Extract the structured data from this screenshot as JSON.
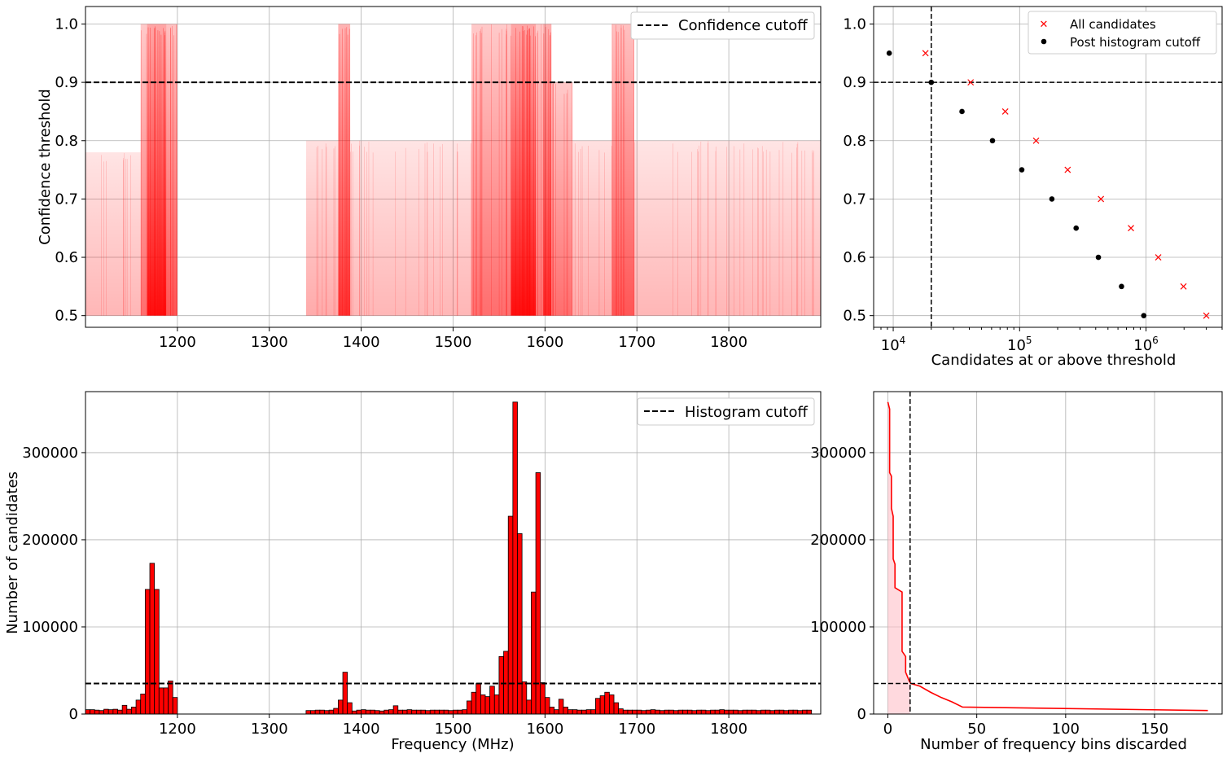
{
  "chart_data": [
    {
      "id": "scatter_freq_conf",
      "type": "scatter",
      "xlabel": "",
      "ylabel": "Confidence threshold",
      "xlim": [
        1100,
        1900
      ],
      "ylim": [
        0.48,
        1.03
      ],
      "xticks": [
        1200,
        1300,
        1400,
        1500,
        1600,
        1700,
        1800
      ],
      "yticks": [
        0.5,
        0.6,
        0.7,
        0.8,
        0.9,
        1.0
      ],
      "ytick_labels": [
        "0.5",
        "0.6",
        "0.7",
        "0.8",
        "0.9",
        "1.0"
      ],
      "grid": true,
      "legend_position": "top-right",
      "point_color": "#ff0000",
      "confidence_cutoff": 0.9,
      "legend": [
        {
          "label": "Confidence cutoff",
          "style": "dashed",
          "color": "#000000"
        }
      ],
      "bands": [
        {
          "from": 1100,
          "to": 1160,
          "density": 0.3,
          "ymax": 0.78
        },
        {
          "from": 1160,
          "to": 1167,
          "density": 0.6,
          "ymax": 1.0
        },
        {
          "from": 1167,
          "to": 1188,
          "density": 1.0,
          "ymax": 1.0
        },
        {
          "from": 1188,
          "to": 1200,
          "density": 0.7,
          "ymax": 1.0
        },
        {
          "from": 1340,
          "to": 1375,
          "density": 0.35,
          "ymax": 0.8
        },
        {
          "from": 1375,
          "to": 1388,
          "density": 0.85,
          "ymax": 1.0
        },
        {
          "from": 1388,
          "to": 1520,
          "density": 0.3,
          "ymax": 0.8
        },
        {
          "from": 1520,
          "to": 1563,
          "density": 0.6,
          "ymax": 1.0
        },
        {
          "from": 1563,
          "to": 1590,
          "density": 1.0,
          "ymax": 1.0
        },
        {
          "from": 1590,
          "to": 1598,
          "density": 0.6,
          "ymax": 1.0
        },
        {
          "from": 1598,
          "to": 1607,
          "density": 0.9,
          "ymax": 1.0
        },
        {
          "from": 1607,
          "to": 1630,
          "density": 0.6,
          "ymax": 0.9
        },
        {
          "from": 1630,
          "to": 1673,
          "density": 0.35,
          "ymax": 0.8
        },
        {
          "from": 1673,
          "to": 1697,
          "density": 0.7,
          "ymax": 1.0
        },
        {
          "from": 1697,
          "to": 1900,
          "density": 0.3,
          "ymax": 0.8
        }
      ]
    },
    {
      "id": "threshold_vs_candidates",
      "type": "scatter",
      "xlabel": "Candidates at or above threshold",
      "ylabel": "",
      "xscale": "log",
      "xlim": [
        7000,
        4000000
      ],
      "ylim": [
        0.48,
        1.03
      ],
      "xtick_values": [
        10000,
        100000,
        1000000
      ],
      "xtick_labels": [
        {
          "base": "10",
          "exp": "4"
        },
        {
          "base": "10",
          "exp": "5"
        },
        {
          "base": "10",
          "exp": "6"
        }
      ],
      "yticks": [
        0.5,
        0.6,
        0.7,
        0.8,
        0.9,
        1.0
      ],
      "ytick_labels": [
        "0.5",
        "0.6",
        "0.7",
        "0.8",
        "0.9",
        "1.0"
      ],
      "grid": true,
      "legend_position": "top-right",
      "hline": 0.9,
      "vline": 20000,
      "series": [
        {
          "name": "All candidates",
          "marker": "x",
          "color": "#ff0000",
          "points": [
            [
              18000,
              0.95
            ],
            [
              41000,
              0.9
            ],
            [
              77000,
              0.85
            ],
            [
              135000,
              0.8
            ],
            [
              240000,
              0.75
            ],
            [
              440000,
              0.7
            ],
            [
              760000,
              0.65
            ],
            [
              1250000,
              0.6
            ],
            [
              1980000,
              0.55
            ],
            [
              3000000,
              0.5
            ]
          ]
        },
        {
          "name": "Post histogram cutoff",
          "marker": "dot",
          "color": "#000000",
          "points": [
            [
              9300,
              0.95
            ],
            [
              20000,
              0.9
            ],
            [
              35000,
              0.85
            ],
            [
              61000,
              0.8
            ],
            [
              104000,
              0.75
            ],
            [
              180000,
              0.7
            ],
            [
              280000,
              0.65
            ],
            [
              420000,
              0.6
            ],
            [
              640000,
              0.55
            ],
            [
              960000,
              0.5
            ]
          ]
        }
      ]
    },
    {
      "id": "frequency_histogram",
      "type": "bar",
      "xlabel": "Frequency (MHz)",
      "ylabel": "Number of candidates",
      "xlim": [
        1100,
        1900
      ],
      "ylim": [
        0,
        370000
      ],
      "xticks": [
        1200,
        1300,
        1400,
        1500,
        1600,
        1700,
        1800
      ],
      "yticks": [
        0,
        100000,
        200000,
        300000
      ],
      "ytick_labels": [
        "0",
        "100000",
        "200000",
        "300000"
      ],
      "bin_start": 1100,
      "bin_width": 5,
      "bar_color": "#ff0000",
      "histogram_cutoff": 35000,
      "grid": true,
      "legend_position": "top-right",
      "legend": [
        {
          "label": "Histogram cutoff",
          "style": "dashed",
          "color": "#000000"
        }
      ],
      "values": [
        5000,
        5000,
        4500,
        4000,
        5500,
        5000,
        5500,
        4500,
        10000,
        5500,
        8000,
        16000,
        23000,
        143000,
        173000,
        143000,
        30000,
        30000,
        38000,
        19000,
        0,
        0,
        0,
        0,
        0,
        0,
        0,
        0,
        0,
        0,
        0,
        0,
        0,
        0,
        0,
        0,
        0,
        0,
        0,
        0,
        0,
        0,
        0,
        0,
        0,
        0,
        0,
        0,
        4000,
        4000,
        4500,
        4500,
        4000,
        4500,
        6500,
        16000,
        48000,
        13000,
        3500,
        4500,
        5000,
        4500,
        4500,
        4000,
        3500,
        4500,
        5000,
        9500,
        4500,
        4500,
        5000,
        4500,
        4500,
        4500,
        4000,
        4500,
        4500,
        4500,
        4500,
        4000,
        4500,
        4500,
        5000,
        15000,
        25000,
        35000,
        22000,
        20000,
        32000,
        22000,
        66000,
        72000,
        227000,
        358000,
        207000,
        37000,
        16000,
        140000,
        277000,
        36000,
        19000,
        8000,
        5000,
        17000,
        8000,
        5000,
        5000,
        4500,
        4500,
        5000,
        5000,
        18000,
        21000,
        25000,
        22000,
        13000,
        6000,
        4500,
        4500,
        4500,
        4500,
        4000,
        4500,
        5000,
        4500,
        4000,
        4500,
        4500,
        4000,
        4500,
        4500,
        4500,
        4000,
        4500,
        4500,
        4000,
        4500,
        4500,
        5000,
        4500,
        4500,
        4500,
        4000,
        4500,
        4500,
        4500,
        4000,
        4500,
        4500,
        4000,
        4500,
        4500,
        4000,
        4500,
        4500,
        4000,
        4500,
        4500
      ]
    },
    {
      "id": "cutoff_curve",
      "type": "line",
      "xlabel": "Number of frequency bins discarded",
      "ylabel": "",
      "xlim": [
        -8,
        188
      ],
      "ylim": [
        0,
        370000
      ],
      "xticks": [
        0,
        50,
        100,
        150
      ],
      "yticks": [
        0,
        100000,
        200000,
        300000
      ],
      "ytick_labels": [
        "0",
        "100000",
        "200000",
        "300000"
      ],
      "grid": true,
      "line_color": "#ff0000",
      "fill_color": "#ffc0c8",
      "hline": 35000,
      "vline": 12.5,
      "points": [
        [
          0,
          358000
        ],
        [
          1,
          350000
        ],
        [
          1,
          277000
        ],
        [
          2,
          273000
        ],
        [
          2,
          236000
        ],
        [
          3,
          227000
        ],
        [
          3,
          178000
        ],
        [
          4,
          172000
        ],
        [
          4,
          145000
        ],
        [
          8,
          140000
        ],
        [
          8,
          72000
        ],
        [
          10,
          66000
        ],
        [
          10,
          48000
        ],
        [
          12,
          38000
        ],
        [
          13,
          35000
        ],
        [
          18,
          32000
        ],
        [
          24,
          25000
        ],
        [
          30,
          19000
        ],
        [
          36,
          14000
        ],
        [
          42,
          8000
        ],
        [
          180,
          4000
        ]
      ]
    }
  ]
}
